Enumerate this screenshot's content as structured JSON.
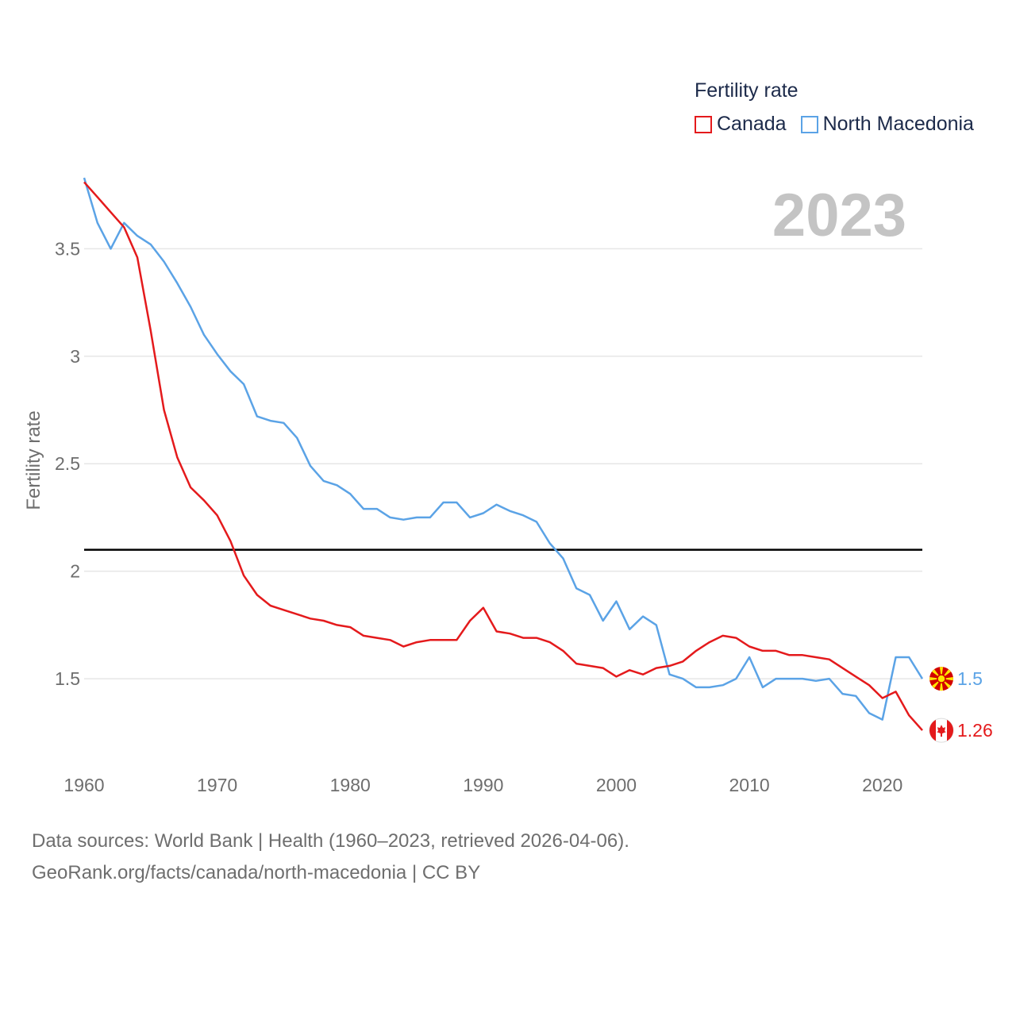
{
  "legend": {
    "title": "Fertility rate",
    "series": [
      {
        "name": "Canada",
        "color": "#e41a1c"
      },
      {
        "name": "North Macedonia",
        "color": "#5ba3e6"
      }
    ]
  },
  "year_display": "2023",
  "footer": {
    "line1": "Data sources: World Bank | Health (1960–2023, retrieved 2026-04-06).",
    "line2": "GeoRank.org/facts/canada/north-macedonia | CC BY"
  },
  "chart_data": {
    "type": "line",
    "title": "Fertility rate",
    "xlabel": "",
    "ylabel": "Fertility rate",
    "xlim": [
      1960,
      2023
    ],
    "ylim": [
      1.05,
      3.9
    ],
    "xticks": [
      1960,
      1970,
      1980,
      1990,
      2000,
      2010,
      2020
    ],
    "xtick_labels": [
      "1960",
      "1970",
      "1980",
      "1990",
      "2000",
      "2010",
      "2020"
    ],
    "yticks": [
      1.5,
      2,
      2.5,
      3,
      3.5
    ],
    "ytick_labels": [
      "1.5",
      "2",
      "2.5",
      "3",
      "3.5"
    ],
    "reference_line": 2.1,
    "x": [
      1960,
      1961,
      1962,
      1963,
      1964,
      1965,
      1966,
      1967,
      1968,
      1969,
      1970,
      1971,
      1972,
      1973,
      1974,
      1975,
      1976,
      1977,
      1978,
      1979,
      1980,
      1981,
      1982,
      1983,
      1984,
      1985,
      1986,
      1987,
      1988,
      1989,
      1990,
      1991,
      1992,
      1993,
      1994,
      1995,
      1996,
      1997,
      1998,
      1999,
      2000,
      2001,
      2002,
      2003,
      2004,
      2005,
      2006,
      2007,
      2008,
      2009,
      2010,
      2011,
      2012,
      2013,
      2014,
      2015,
      2016,
      2017,
      2018,
      2019,
      2020,
      2021,
      2022,
      2023
    ],
    "series": [
      {
        "name": "Canada",
        "color": "#e41a1c",
        "end_label": "1.26",
        "values": [
          3.81,
          3.74,
          3.67,
          3.6,
          3.46,
          3.12,
          2.75,
          2.53,
          2.39,
          2.33,
          2.26,
          2.14,
          1.98,
          1.89,
          1.84,
          1.82,
          1.8,
          1.78,
          1.77,
          1.75,
          1.74,
          1.7,
          1.69,
          1.68,
          1.65,
          1.67,
          1.68,
          1.68,
          1.68,
          1.77,
          1.83,
          1.72,
          1.71,
          1.69,
          1.69,
          1.67,
          1.63,
          1.57,
          1.56,
          1.55,
          1.51,
          1.54,
          1.52,
          1.55,
          1.56,
          1.58,
          1.63,
          1.67,
          1.7,
          1.69,
          1.65,
          1.63,
          1.63,
          1.61,
          1.61,
          1.6,
          1.59,
          1.55,
          1.51,
          1.47,
          1.41,
          1.44,
          1.33,
          1.26
        ]
      },
      {
        "name": "North Macedonia",
        "color": "#5ba3e6",
        "end_label": "1.5",
        "values": [
          3.83,
          3.62,
          3.5,
          3.62,
          3.56,
          3.52,
          3.44,
          3.34,
          3.23,
          3.1,
          3.01,
          2.93,
          2.87,
          2.72,
          2.7,
          2.69,
          2.62,
          2.49,
          2.42,
          2.4,
          2.36,
          2.29,
          2.29,
          2.25,
          2.24,
          2.25,
          2.25,
          2.32,
          2.32,
          2.25,
          2.27,
          2.31,
          2.28,
          2.26,
          2.23,
          2.13,
          2.06,
          1.92,
          1.89,
          1.77,
          1.86,
          1.73,
          1.79,
          1.75,
          1.52,
          1.5,
          1.46,
          1.46,
          1.47,
          1.5,
          1.6,
          1.46,
          1.5,
          1.5,
          1.5,
          1.49,
          1.5,
          1.43,
          1.42,
          1.34,
          1.31,
          1.6,
          1.6,
          1.5
        ]
      }
    ]
  }
}
